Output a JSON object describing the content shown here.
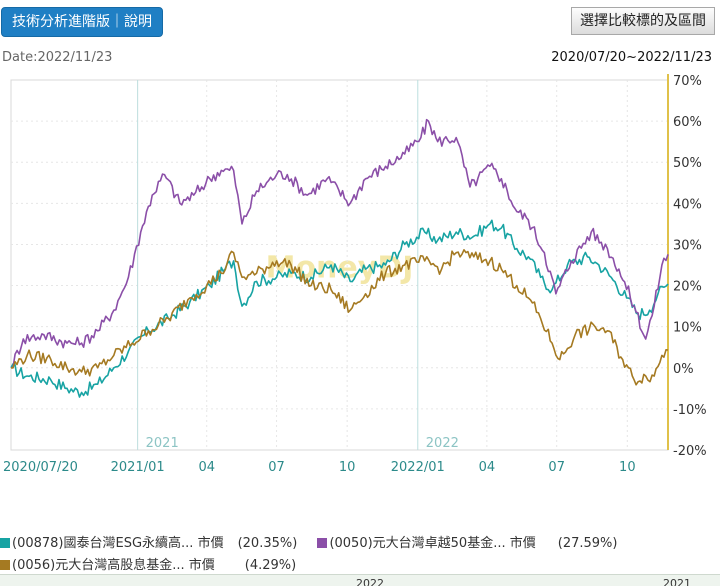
{
  "header": {
    "tab_label": "技術分析進階版｜說明",
    "select_button": "選擇比較標的及區間"
  },
  "date_label": "Date:2022/11/23",
  "range_label": "2020/07/20~2022/11/23",
  "chart_data": {
    "type": "line",
    "watermark": "MoneyDJ",
    "y_unit": "%",
    "ylim": [
      -20,
      70
    ],
    "y_ticks": [
      "70%",
      "60%",
      "50%",
      "40%",
      "30%",
      "20%",
      "10%",
      "0%",
      "-10%",
      "-20%"
    ],
    "x_range": [
      "2020-07-20",
      "2022-11-23"
    ],
    "x_ticks": [
      {
        "label": "2020/07/20",
        "date": "2020-07-20"
      },
      {
        "label": "2021/01",
        "date": "2021-01-01"
      },
      {
        "label": "04",
        "date": "2021-04-01"
      },
      {
        "label": "07",
        "date": "2021-07-01"
      },
      {
        "label": "10",
        "date": "2021-10-01"
      },
      {
        "label": "2022/01",
        "date": "2022-01-01"
      },
      {
        "label": "04",
        "date": "2022-04-01"
      },
      {
        "label": "07",
        "date": "2022-07-01"
      },
      {
        "label": "10",
        "date": "2022-10-01"
      }
    ],
    "year_markers": [
      {
        "label": "2021",
        "date": "2021-01-01"
      },
      {
        "label": "2022",
        "date": "2022-01-01"
      }
    ],
    "series": [
      {
        "name": "(00878)國泰台灣ESG永續高... 市價",
        "pct_label": "(20.35%)",
        "color": "#17a3a3",
        "points": [
          [
            "2020-07-20",
            0
          ],
          [
            "2020-08-10",
            -2
          ],
          [
            "2020-09-10",
            -3
          ],
          [
            "2020-10-01",
            -5
          ],
          [
            "2020-10-20",
            -6
          ],
          [
            "2020-11-10",
            -4
          ],
          [
            "2020-12-01",
            0
          ],
          [
            "2020-12-20",
            4
          ],
          [
            "2021-01-15",
            9
          ],
          [
            "2021-02-10",
            12
          ],
          [
            "2021-03-10",
            16
          ],
          [
            "2021-04-05",
            20
          ],
          [
            "2021-04-25",
            24
          ],
          [
            "2021-05-06",
            26
          ],
          [
            "2021-05-17",
            15
          ],
          [
            "2021-06-05",
            21
          ],
          [
            "2021-07-01",
            22
          ],
          [
            "2021-07-20",
            23
          ],
          [
            "2021-08-15",
            22
          ],
          [
            "2021-09-10",
            25
          ],
          [
            "2021-10-05",
            21
          ],
          [
            "2021-10-25",
            24
          ],
          [
            "2021-11-20",
            25
          ],
          [
            "2021-12-15",
            30
          ],
          [
            "2022-01-10",
            33
          ],
          [
            "2022-01-27",
            31
          ],
          [
            "2022-02-20",
            33
          ],
          [
            "2022-03-15",
            32
          ],
          [
            "2022-04-05",
            35
          ],
          [
            "2022-04-20",
            34
          ],
          [
            "2022-05-10",
            29
          ],
          [
            "2022-05-25",
            27
          ],
          [
            "2022-06-10",
            22
          ],
          [
            "2022-06-25",
            19
          ],
          [
            "2022-07-15",
            25
          ],
          [
            "2022-08-10",
            27
          ],
          [
            "2022-08-25",
            25
          ],
          [
            "2022-09-10",
            22
          ],
          [
            "2022-09-30",
            17
          ],
          [
            "2022-10-15",
            13
          ],
          [
            "2022-10-30",
            14
          ],
          [
            "2022-11-10",
            18
          ],
          [
            "2022-11-23",
            20.35
          ]
        ]
      },
      {
        "name": "(0050)元大台灣卓越50基金... 市價",
        "pct_label": "(27.59%)",
        "color": "#8b4fa8",
        "points": [
          [
            "2020-07-20",
            0
          ],
          [
            "2020-08-05",
            7
          ],
          [
            "2020-09-01",
            8
          ],
          [
            "2020-10-01",
            6
          ],
          [
            "2020-10-20",
            6
          ],
          [
            "2020-11-10",
            9
          ],
          [
            "2020-12-01",
            14
          ],
          [
            "2020-12-20",
            22
          ],
          [
            "2021-01-05",
            33
          ],
          [
            "2021-01-20",
            42
          ],
          [
            "2021-02-05",
            47
          ],
          [
            "2021-02-25",
            40
          ],
          [
            "2021-03-15",
            42
          ],
          [
            "2021-04-05",
            46
          ],
          [
            "2021-04-20",
            48
          ],
          [
            "2021-05-06",
            48
          ],
          [
            "2021-05-17",
            35
          ],
          [
            "2021-06-05",
            43
          ],
          [
            "2021-07-01",
            47
          ],
          [
            "2021-07-15",
            47
          ],
          [
            "2021-08-10",
            42
          ],
          [
            "2021-09-05",
            46
          ],
          [
            "2021-10-05",
            40
          ],
          [
            "2021-10-25",
            46
          ],
          [
            "2021-11-20",
            49
          ],
          [
            "2021-12-15",
            52
          ],
          [
            "2022-01-05",
            56
          ],
          [
            "2022-01-15",
            60
          ],
          [
            "2022-01-27",
            55
          ],
          [
            "2022-02-20",
            56
          ],
          [
            "2022-03-10",
            44
          ],
          [
            "2022-04-05",
            49
          ],
          [
            "2022-04-20",
            46
          ],
          [
            "2022-05-10",
            38
          ],
          [
            "2022-05-25",
            36
          ],
          [
            "2022-06-15",
            28
          ],
          [
            "2022-06-30",
            18
          ],
          [
            "2022-07-20",
            26
          ],
          [
            "2022-08-15",
            33
          ],
          [
            "2022-09-05",
            29
          ],
          [
            "2022-09-20",
            24
          ],
          [
            "2022-10-10",
            15
          ],
          [
            "2022-10-25",
            7
          ],
          [
            "2022-11-05",
            15
          ],
          [
            "2022-11-15",
            25
          ],
          [
            "2022-11-23",
            27.59
          ]
        ]
      },
      {
        "name": "(0056)元大台灣高股息基金... 市價",
        "pct_label": "(4.29%)",
        "color": "#a57a22",
        "points": [
          [
            "2020-07-20",
            0
          ],
          [
            "2020-08-10",
            3
          ],
          [
            "2020-09-10",
            2
          ],
          [
            "2020-10-01",
            0
          ],
          [
            "2020-10-20",
            -1
          ],
          [
            "2020-11-10",
            0
          ],
          [
            "2020-12-01",
            3
          ],
          [
            "2020-12-25",
            6
          ],
          [
            "2021-01-15",
            9
          ],
          [
            "2021-02-10",
            12
          ],
          [
            "2021-03-10",
            17
          ],
          [
            "2021-04-01",
            20
          ],
          [
            "2021-04-20",
            23
          ],
          [
            "2021-05-06",
            28
          ],
          [
            "2021-05-17",
            22
          ],
          [
            "2021-06-05",
            23
          ],
          [
            "2021-07-01",
            26
          ],
          [
            "2021-07-20",
            25
          ],
          [
            "2021-08-15",
            20
          ],
          [
            "2021-09-10",
            19
          ],
          [
            "2021-10-05",
            14
          ],
          [
            "2021-10-25",
            18
          ],
          [
            "2021-11-20",
            23
          ],
          [
            "2021-12-15",
            25
          ],
          [
            "2022-01-10",
            26
          ],
          [
            "2022-02-01",
            24
          ],
          [
            "2022-02-20",
            28
          ],
          [
            "2022-03-15",
            27
          ],
          [
            "2022-04-05",
            26
          ],
          [
            "2022-04-20",
            24
          ],
          [
            "2022-05-10",
            20
          ],
          [
            "2022-05-25",
            17
          ],
          [
            "2022-06-10",
            12
          ],
          [
            "2022-06-25",
            6
          ],
          [
            "2022-07-05",
            2
          ],
          [
            "2022-07-25",
            8
          ],
          [
            "2022-08-20",
            10
          ],
          [
            "2022-09-05",
            9
          ],
          [
            "2022-09-25",
            2
          ],
          [
            "2022-10-10",
            -3
          ],
          [
            "2022-10-25",
            -2
          ],
          [
            "2022-11-05",
            -2
          ],
          [
            "2022-11-15",
            3
          ],
          [
            "2022-11-23",
            4.29
          ]
        ]
      }
    ]
  },
  "bottom_strip": [
    "2022",
    "2021"
  ]
}
